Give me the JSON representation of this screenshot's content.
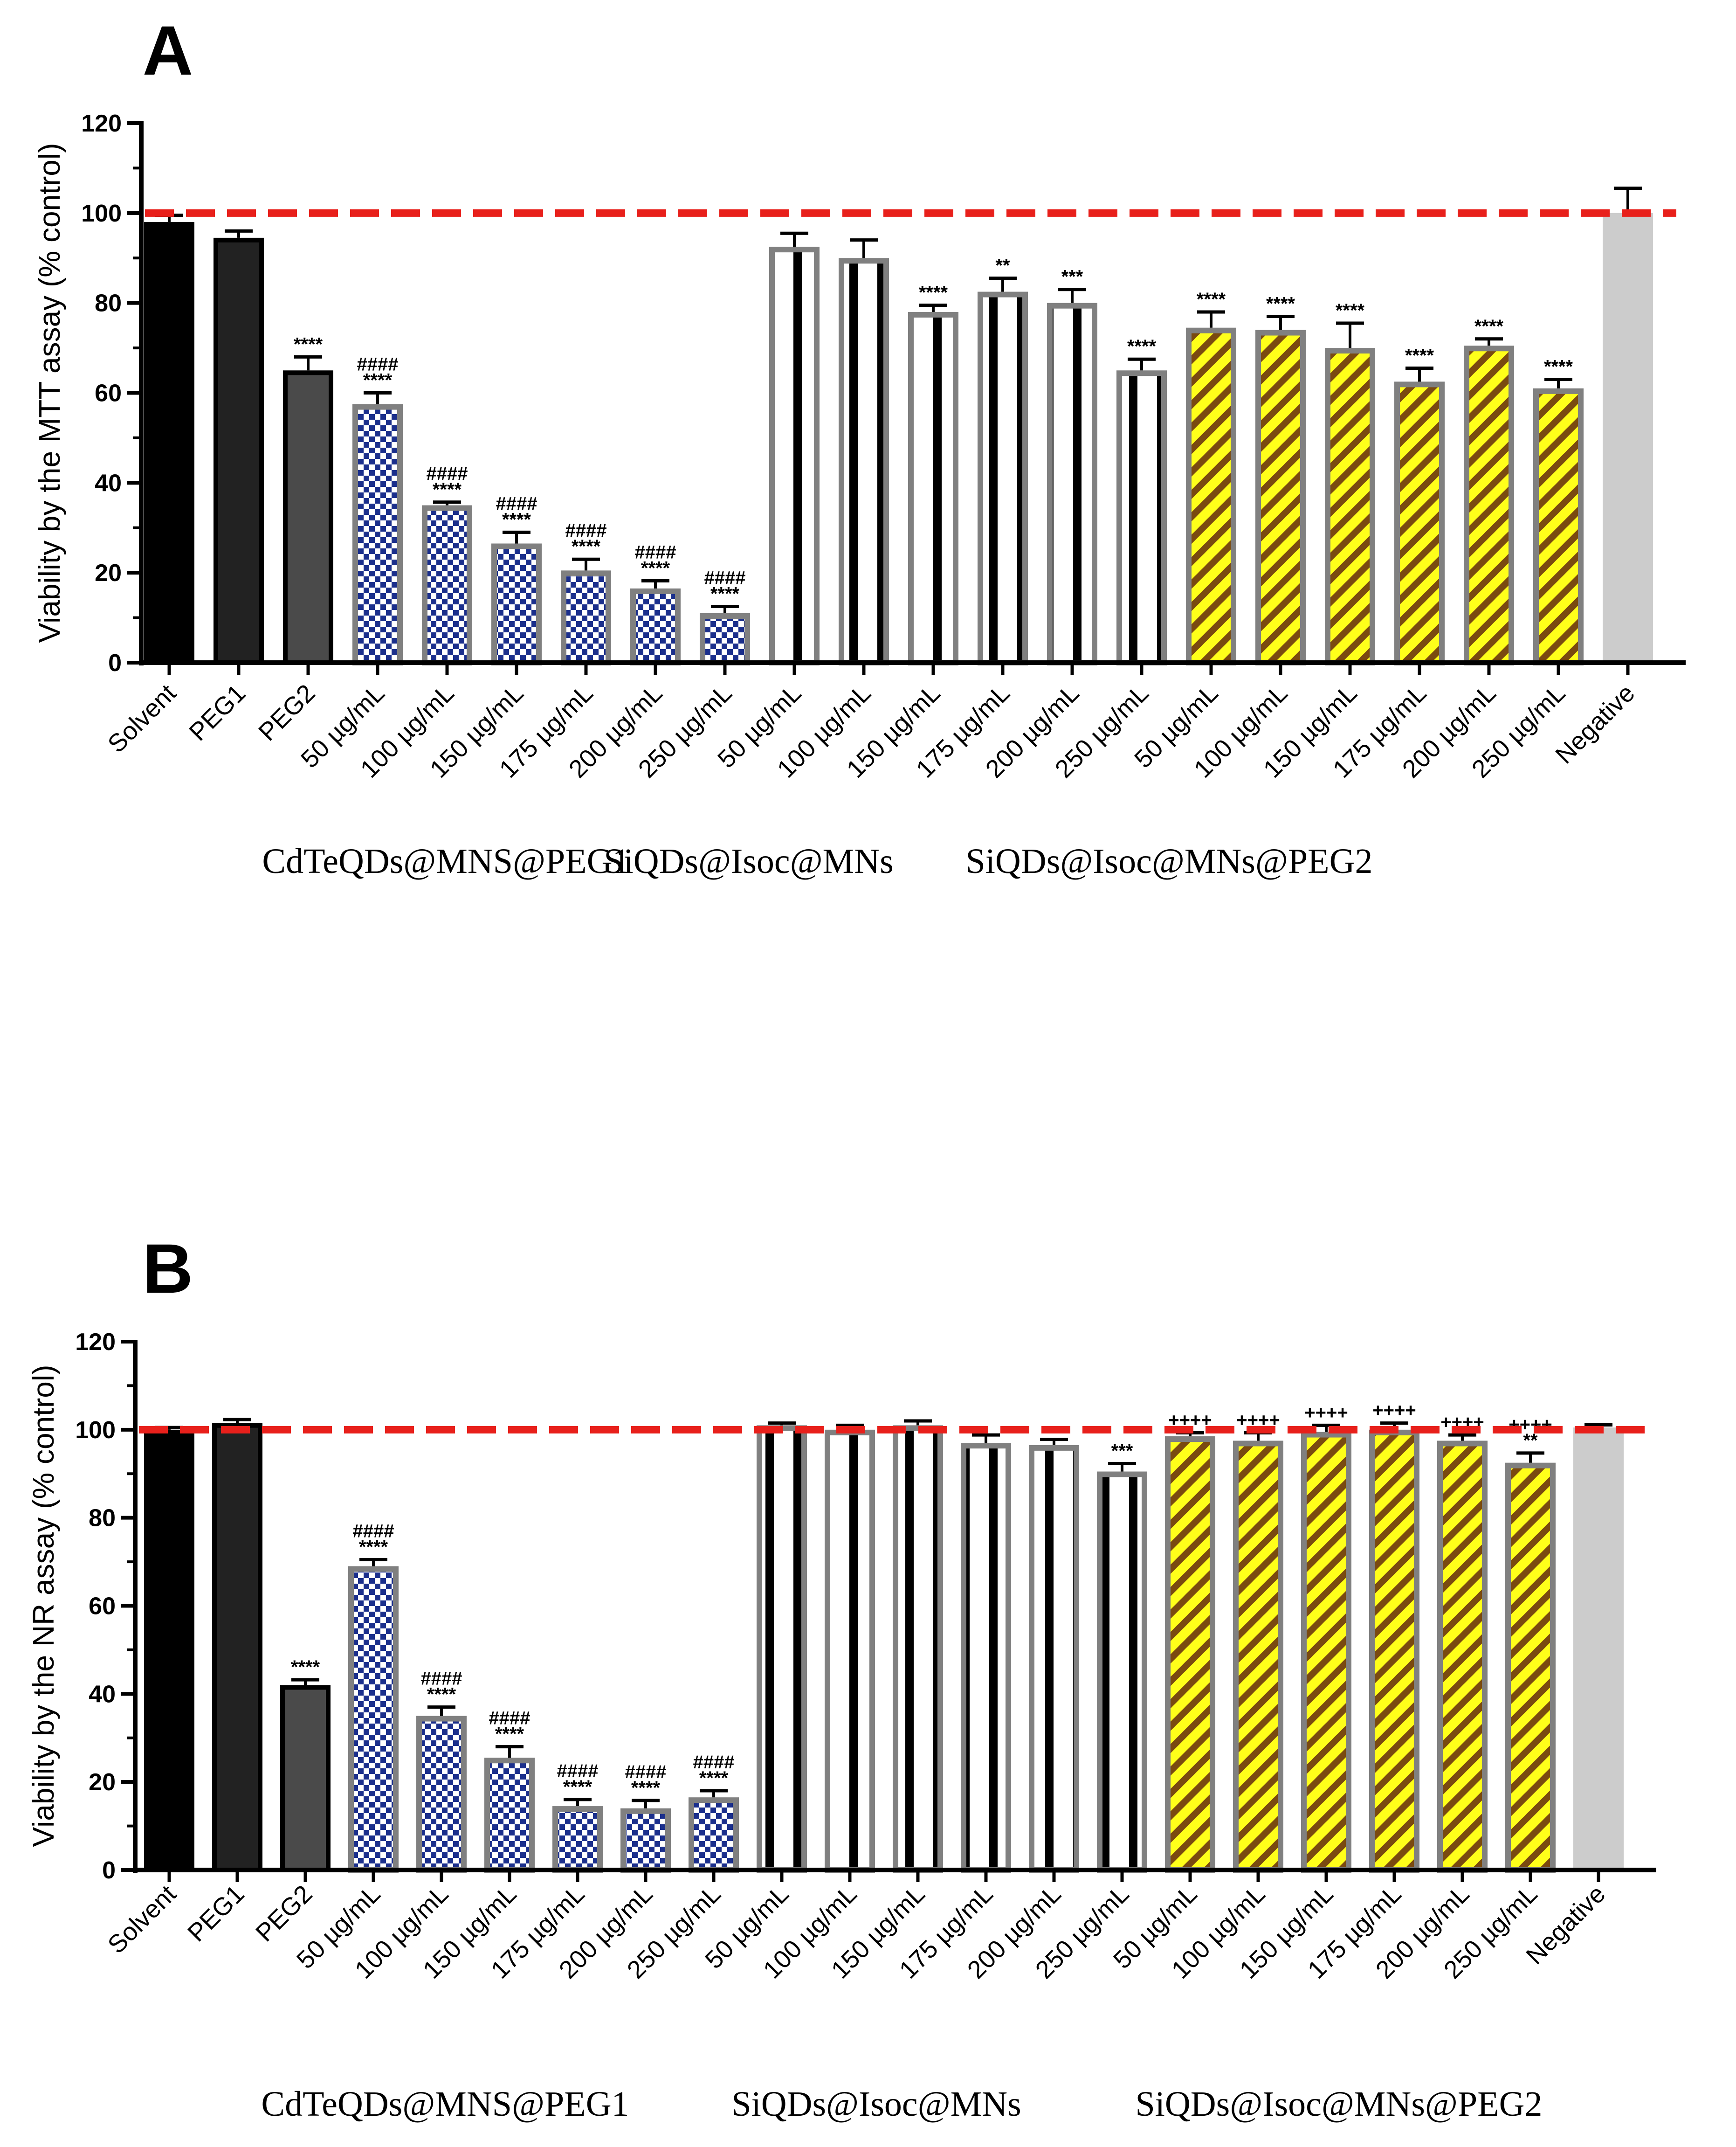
{
  "figure": {
    "panels": [
      "A",
      "B"
    ],
    "group_labels": [
      "CdTeQDs@MNS@PEG1",
      "SiQDs@Isoc@MNs",
      "SiQDs@Isoc@MNs@PEG2"
    ]
  },
  "colors": {
    "reference_line": "#e8201b",
    "solvent": "#000000",
    "peg1": "#222222",
    "peg2": "#4a4a4a",
    "cdte_check_dark": "#1b2f8c",
    "cdte_check_light": "#ffffff",
    "siqds_stripe_dark": "#000000",
    "siqds_stripe_light": "#ffffff",
    "peg2_stripe_yellow": "#ffff1a",
    "peg2_stripe_brown": "#7a4a10",
    "bar_outline_grey": "#808080",
    "negative": "#cccccc"
  },
  "chart_data": [
    {
      "panel": "A",
      "type": "bar",
      "ylabel": "Viability by the MTT assay  (% control)",
      "ylim": [
        0,
        120
      ],
      "yticks": [
        0,
        20,
        40,
        60,
        80,
        100,
        120
      ],
      "reference_line": 100,
      "categories": [
        "Solvent",
        "PEG1",
        "PEG2",
        "50 µg/mL",
        "100 µg/mL",
        "150 µg/mL",
        "175 µg/mL",
        "200 µg/mL",
        "250 µg/mL",
        "50 µg/mL",
        "100 µg/mL",
        "150 µg/mL",
        "175 µg/mL",
        "200 µg/mL",
        "250 µg/mL",
        "50 µg/mL",
        "100 µg/mL",
        "150 µg/mL",
        "175 µg/mL",
        "200 µg/mL",
        "250 µg/mL",
        "Negative"
      ],
      "styles": [
        "solvent",
        "peg1",
        "peg2",
        "check",
        "check",
        "check",
        "check",
        "check",
        "check",
        "vstripe",
        "vstripe",
        "vstripe",
        "vstripe",
        "vstripe",
        "vstripe",
        "diag",
        "diag",
        "diag",
        "diag",
        "diag",
        "diag",
        "negative"
      ],
      "values": [
        98,
        94.5,
        65,
        57.5,
        35,
        26.5,
        20.5,
        16.5,
        11,
        92.5,
        90,
        78,
        82.5,
        80,
        65,
        74.5,
        74,
        70,
        62.5,
        70.5,
        61,
        100
      ],
      "errors": [
        1.5,
        1.5,
        3,
        2.5,
        0.7,
        2.5,
        2.5,
        1.7,
        1.5,
        3,
        4,
        1.5,
        3,
        3,
        2.5,
        3.5,
        3,
        5.5,
        3,
        1.5,
        2,
        5.5
      ],
      "annotations": [
        "",
        "",
        "****",
        "####\n****",
        "####\n****",
        "####\n****",
        "####\n****",
        "####\n****",
        "####\n****",
        "",
        "",
        "****",
        "**",
        "***",
        "****",
        "****",
        "****",
        "****",
        "****",
        "****",
        "****",
        ""
      ]
    },
    {
      "panel": "B",
      "type": "bar",
      "ylabel": "Viability by the NR assay  (% control)",
      "ylim": [
        0,
        120
      ],
      "yticks": [
        0,
        20,
        40,
        60,
        80,
        100,
        120
      ],
      "reference_line": 100,
      "categories": [
        "Solvent",
        "PEG1",
        "PEG2",
        "50 µg/mL",
        "100 µg/mL",
        "150 µg/mL",
        "175 µg/mL",
        "200 µg/mL",
        "250 µg/mL",
        "50 µg/mL",
        "100 µg/mL",
        "150 µg/mL",
        "175 µg/mL",
        "200 µg/mL",
        "250 µg/mL",
        "50 µg/mL",
        "100 µg/mL",
        "150 µg/mL",
        "175 µg/mL",
        "200 µg/mL",
        "250 µg/mL",
        "Negative"
      ],
      "styles": [
        "solvent",
        "peg1",
        "peg2",
        "check",
        "check",
        "check",
        "check",
        "check",
        "check",
        "vstripe",
        "vstripe",
        "vstripe",
        "vstripe",
        "vstripe",
        "vstripe",
        "diag",
        "diag",
        "diag",
        "diag",
        "diag",
        "diag",
        "negative"
      ],
      "values": [
        100,
        101.5,
        42,
        69,
        35,
        25.5,
        14.5,
        14,
        16.5,
        101,
        100,
        101,
        97,
        96.5,
        90.5,
        98.5,
        97.5,
        99.5,
        100,
        97.5,
        92.5,
        100.5
      ],
      "errors": [
        0.5,
        0.8,
        1.2,
        1.5,
        2,
        2.5,
        1.5,
        1.8,
        1.5,
        0.5,
        1,
        1,
        1.8,
        1.3,
        1.8,
        0.8,
        1.8,
        1.5,
        1.5,
        1.3,
        2.2,
        0.6
      ],
      "annotations": [
        "",
        "",
        "****",
        "####\n****",
        "####\n****",
        "####\n****",
        "####\n****",
        "####\n****",
        "####\n****",
        "",
        "",
        "",
        "",
        "",
        "***",
        "++++",
        "++++",
        "++++",
        "++++",
        "++++",
        "++++\n**",
        ""
      ]
    }
  ]
}
